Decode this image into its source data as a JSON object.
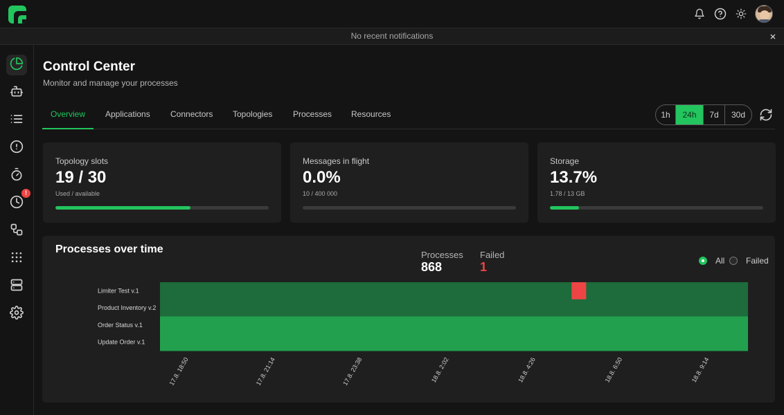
{
  "notification": {
    "text": "No recent notifications"
  },
  "sidebar": {
    "items": [
      {
        "name": "dashboard-icon",
        "active": true
      },
      {
        "name": "robot-icon",
        "active": false
      },
      {
        "name": "list-icon",
        "active": false
      },
      {
        "name": "alert-icon",
        "active": false
      },
      {
        "name": "stopwatch-icon",
        "active": false
      },
      {
        "name": "clock-icon",
        "active": false,
        "badge": "!"
      },
      {
        "name": "flow-icon",
        "active": false
      },
      {
        "name": "apps-grid-icon",
        "active": false
      },
      {
        "name": "server-icon",
        "active": false
      },
      {
        "name": "gear-icon",
        "active": false
      }
    ]
  },
  "header": {
    "title": "Control Center",
    "subtitle": "Monitor and manage your processes"
  },
  "tabs": [
    {
      "label": "Overview",
      "active": true
    },
    {
      "label": "Applications",
      "active": false
    },
    {
      "label": "Connectors",
      "active": false
    },
    {
      "label": "Topologies",
      "active": false
    },
    {
      "label": "Processes",
      "active": false
    },
    {
      "label": "Resources",
      "active": false
    }
  ],
  "time_range": {
    "options": [
      "1h",
      "24h",
      "7d",
      "30d"
    ],
    "selected": "24h"
  },
  "stats": [
    {
      "label": "Topology slots",
      "value": "19 / 30",
      "sub": "Used / available",
      "progress": 0.633
    },
    {
      "label": "Messages in flight",
      "value": "0.0%",
      "sub": "10 / 400 000",
      "progress": 0.0
    },
    {
      "label": "Storage",
      "value": "13.7%",
      "sub": "1.78 / 13 GB",
      "progress": 0.137
    }
  ],
  "processes_panel": {
    "title": "Processes over time",
    "summary": [
      {
        "label": "Processes",
        "value": "868"
      },
      {
        "label": "Failed",
        "value": "1"
      }
    ],
    "filters": [
      {
        "label": "All",
        "selected": true
      },
      {
        "label": "Failed",
        "selected": false
      }
    ]
  },
  "colors": {
    "accent": "#22c55e",
    "failed": "#ef4444",
    "heat_high": "#22a04e",
    "heat_low": "#1e6b3c"
  },
  "chart_data": {
    "type": "heatmap",
    "rows": [
      "Limiter Test v.1",
      "Product Inventory v.2",
      "Order Status v.1",
      "Update Order v.1"
    ],
    "x_ticks": [
      "17.8. 18:50",
      "17.8. 21:14",
      "17.8. 23:38",
      "18.8. 2:02",
      "18.8. 4:26",
      "18.8. 6:50",
      "18.8. 9:14"
    ],
    "cells": [
      {
        "row": "Limiter Test v.1",
        "level": "low"
      },
      {
        "row": "Product Inventory v.2",
        "level": "low"
      },
      {
        "row": "Order Status v.1",
        "level": "high"
      },
      {
        "row": "Update Order v.1",
        "level": "high"
      }
    ],
    "failures": [
      {
        "row": "Limiter Test v.1",
        "time": "18.8. 5:38",
        "count": 1
      }
    ]
  }
}
